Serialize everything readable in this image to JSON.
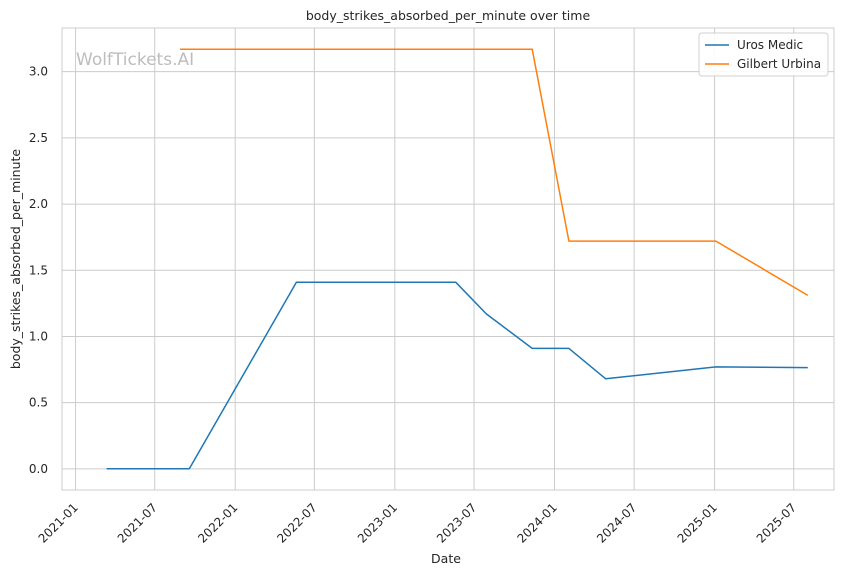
{
  "chart_data": {
    "type": "line",
    "title": "body_strikes_absorbed_per_minute over time",
    "xlabel": "Date",
    "ylabel": "body_strikes_absorbed_per_minute",
    "watermark": "WolfTickets.AI",
    "x_axis_type": "date",
    "xlim": [
      "2020-12-01",
      "2025-10-01"
    ],
    "ylim": [
      -0.16,
      3.33
    ],
    "x_ticks": [
      "2021-01",
      "2021-07",
      "2022-01",
      "2022-07",
      "2023-01",
      "2023-07",
      "2024-01",
      "2024-07",
      "2025-01",
      "2025-07"
    ],
    "y_ticks": [
      "0.0",
      "0.5",
      "1.0",
      "1.5",
      "2.0",
      "2.5",
      "3.0"
    ],
    "grid": true,
    "legend_position": "top-right",
    "series": [
      {
        "name": "Uros Medic",
        "color": "#1f77b4",
        "points": [
          {
            "x": "2021-03-13",
            "y": 0.0
          },
          {
            "x": "2021-09-18",
            "y": 0.0
          },
          {
            "x": "2022-05-21",
            "y": 1.41
          },
          {
            "x": "2023-05-20",
            "y": 1.41
          },
          {
            "x": "2023-07-29",
            "y": 1.17
          },
          {
            "x": "2023-11-11",
            "y": 0.91
          },
          {
            "x": "2024-02-03",
            "y": 0.91
          },
          {
            "x": "2024-04-27",
            "y": 0.68
          },
          {
            "x": "2025-01-04",
            "y": 0.77
          },
          {
            "x": "2025-08-02",
            "y": 0.765
          }
        ]
      },
      {
        "name": "Gilbert Urbina",
        "color": "#ff7f0e",
        "points": [
          {
            "x": "2021-08-28",
            "y": 3.17
          },
          {
            "x": "2023-11-11",
            "y": 3.17
          },
          {
            "x": "2024-02-03",
            "y": 1.72
          },
          {
            "x": "2025-01-04",
            "y": 1.72
          },
          {
            "x": "2025-08-02",
            "y": 1.31
          }
        ]
      }
    ]
  }
}
